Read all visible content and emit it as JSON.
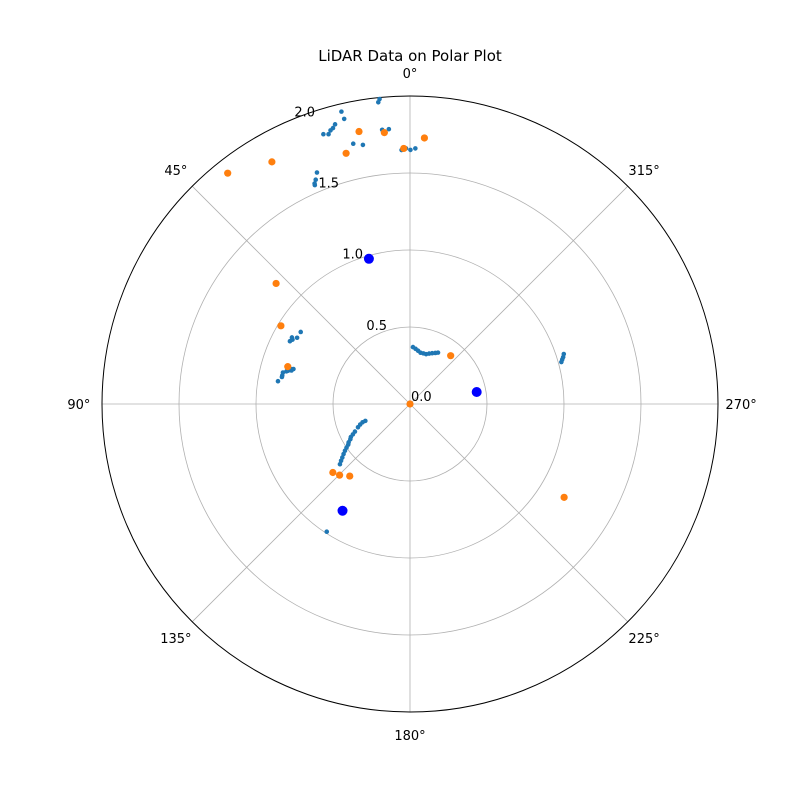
{
  "chart_data": {
    "type": "scatter",
    "projection": "polar",
    "title": "LiDAR Data on Polar Plot",
    "theta_zero_location": "top",
    "theta_direction": "counterclockwise",
    "theta_ticks_deg": [
      0,
      45,
      90,
      135,
      180,
      225,
      270,
      315
    ],
    "theta_tick_labels": [
      "0°",
      "45°",
      "90°",
      "135°",
      "180°",
      "225°",
      "270°",
      "315°"
    ],
    "r_ticks": [
      0.0,
      0.5,
      1.0,
      1.5,
      2.0
    ],
    "r_tick_labels": [
      "0.0",
      "0.5",
      "1.0",
      "1.5",
      "2.0"
    ],
    "rlim": [
      0,
      2.0
    ],
    "grid": true,
    "colors": {
      "scan": "#1f77b4",
      "landmark": "#ff7f0e",
      "robot": "#0000ff",
      "grid": "#b0b0b0",
      "frame": "#000000"
    },
    "series": [
      {
        "color_key": "scan",
        "points": [
          [
            359.9,
            1.65
          ],
          [
            358.8,
            1.66
          ],
          [
            0.9,
            1.66
          ],
          [
            1.9,
            1.65
          ],
          [
            5.7,
            1.99
          ],
          [
            6.0,
            1.97
          ],
          [
            13.2,
            1.95
          ],
          [
            13.0,
            1.9
          ],
          [
            12.3,
            1.73
          ],
          [
            10.3,
            1.71
          ],
          [
            5.4,
            1.77
          ],
          [
            5.8,
            1.79
          ],
          [
            4.4,
            1.79
          ],
          [
            17.8,
            1.84
          ],
          [
            16.8,
            1.83
          ],
          [
            16.2,
            1.85
          ],
          [
            15.0,
            1.88
          ],
          [
            15.6,
            1.86
          ],
          [
            21.9,
            1.62
          ],
          [
            23.5,
            1.55
          ],
          [
            23.4,
            1.56
          ],
          [
            22.8,
            1.58
          ],
          [
            16.6,
            0.98
          ],
          [
            56.6,
            0.85
          ],
          [
            59.6,
            0.85
          ],
          [
            60.6,
            0.88
          ],
          [
            61.3,
            0.87
          ],
          [
            62.4,
            0.88
          ],
          [
            73.3,
            0.79
          ],
          [
            73.6,
            0.8
          ],
          [
            74.2,
            0.8
          ],
          [
            74.7,
            0.82
          ],
          [
            75.2,
            0.83
          ],
          [
            76.1,
            0.85
          ],
          [
            77.4,
            0.85
          ],
          [
            78.1,
            0.85
          ],
          [
            80.2,
            0.87
          ],
          [
            110.7,
            0.31
          ],
          [
            111.1,
            0.33
          ],
          [
            112.4,
            0.35
          ],
          [
            114.1,
            0.37
          ],
          [
            116.6,
            0.4
          ],
          [
            118.0,
            0.42
          ],
          [
            119.2,
            0.44
          ],
          [
            120.6,
            0.45
          ],
          [
            122.0,
            0.47
          ],
          [
            123.3,
            0.48
          ],
          [
            124.5,
            0.5
          ],
          [
            125.7,
            0.52
          ],
          [
            127.0,
            0.54
          ],
          [
            128.3,
            0.56
          ],
          [
            129.5,
            0.58
          ],
          [
            130.7,
            0.6
          ],
          [
            146.9,
            0.99
          ],
          [
            331.4,
            0.38
          ],
          [
            333.6,
            0.37
          ],
          [
            336.4,
            0.36
          ],
          [
            339.2,
            0.35
          ],
          [
            342.1,
            0.34
          ],
          [
            345.2,
            0.34
          ],
          [
            348.4,
            0.34
          ],
          [
            351.4,
            0.35
          ],
          [
            354.2,
            0.36
          ],
          [
            357.0,
            0.37
          ],
          [
            285.5,
            1.02
          ],
          [
            286.3,
            1.03
          ],
          [
            287.0,
            1.04
          ],
          [
            288.0,
            1.05
          ]
        ]
      },
      {
        "color_key": "landmark",
        "points": [
          [
            38.3,
            1.91
          ],
          [
            29.7,
            1.81
          ],
          [
            14.3,
            1.68
          ],
          [
            10.6,
            1.8
          ],
          [
            5.4,
            1.77
          ],
          [
            356.9,
            1.73
          ],
          [
            1.4,
            1.66
          ],
          [
            48.0,
            1.17
          ],
          [
            58.8,
            0.98
          ],
          [
            73.0,
            0.83
          ],
          [
            140.1,
            0.61
          ],
          [
            135.3,
            0.65
          ],
          [
            131.6,
            0.67
          ],
          [
            319.9,
            0.41
          ],
          [
            238.8,
            1.17
          ],
          [
            0,
            0
          ]
        ]
      },
      {
        "color_key": "robot",
        "points": [
          [
            15.8,
            0.98
          ],
          [
            147.7,
            0.82
          ],
          [
            280.2,
            0.44
          ]
        ]
      }
    ]
  }
}
